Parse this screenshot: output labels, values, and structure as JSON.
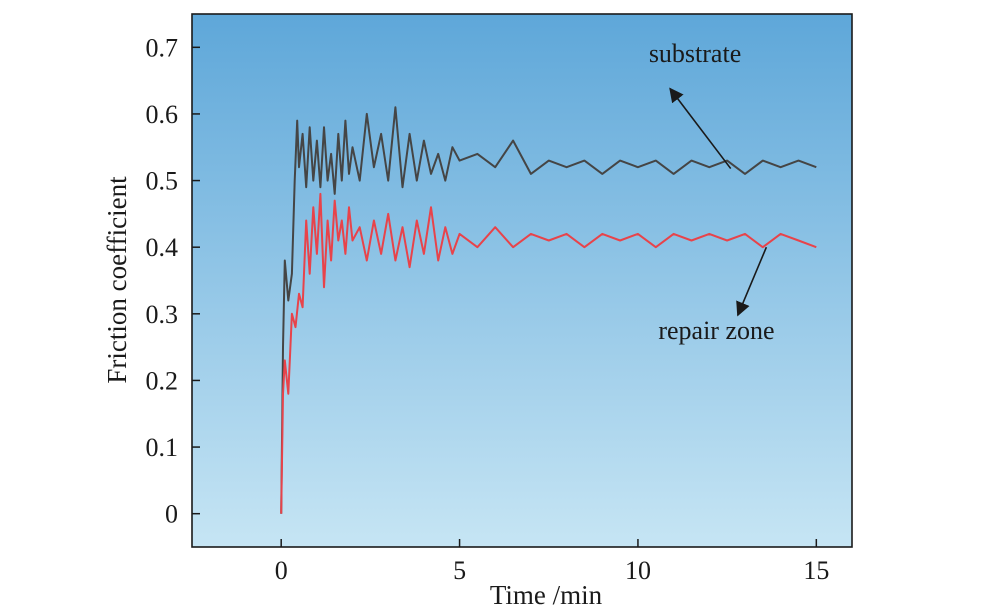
{
  "chart_data": {
    "type": "line",
    "title": "",
    "xlabel": "Time /min",
    "ylabel": "Friction coefficient",
    "xlim": [
      -2.5,
      16
    ],
    "ylim": [
      -0.05,
      0.75
    ],
    "x_ticks": [
      0,
      5,
      10,
      15
    ],
    "y_ticks": [
      0,
      0.1,
      0.2,
      0.3,
      0.4,
      0.5,
      0.6,
      0.7
    ],
    "x_tick_labels": [
      "0",
      "5",
      "10",
      "15"
    ],
    "y_tick_labels": [
      "0",
      "0.1",
      "0.2",
      "0.3",
      "0.4",
      "0.5",
      "0.6",
      "0.7"
    ],
    "grid": false,
    "legend": "none",
    "series": [
      {
        "name": "substrate",
        "color": "#454545",
        "x": [
          0,
          0.05,
          0.1,
          0.2,
          0.3,
          0.38,
          0.45,
          0.5,
          0.6,
          0.7,
          0.8,
          0.9,
          1.0,
          1.1,
          1.2,
          1.3,
          1.4,
          1.5,
          1.6,
          1.7,
          1.8,
          1.9,
          2.0,
          2.2,
          2.4,
          2.6,
          2.8,
          3.0,
          3.2,
          3.4,
          3.6,
          3.8,
          4.0,
          4.2,
          4.4,
          4.6,
          4.8,
          5.0,
          5.5,
          6.0,
          6.5,
          7.0,
          7.5,
          8.0,
          8.5,
          9.0,
          9.5,
          10.0,
          10.5,
          11.0,
          11.5,
          12.0,
          12.5,
          13.0,
          13.5,
          14.0,
          14.5,
          15.0
        ],
        "values": [
          0.0,
          0.25,
          0.38,
          0.32,
          0.36,
          0.5,
          0.59,
          0.52,
          0.57,
          0.49,
          0.58,
          0.5,
          0.56,
          0.49,
          0.58,
          0.5,
          0.54,
          0.48,
          0.57,
          0.5,
          0.59,
          0.51,
          0.55,
          0.5,
          0.6,
          0.52,
          0.57,
          0.5,
          0.61,
          0.49,
          0.57,
          0.5,
          0.56,
          0.51,
          0.54,
          0.5,
          0.55,
          0.53,
          0.54,
          0.52,
          0.56,
          0.51,
          0.53,
          0.52,
          0.53,
          0.51,
          0.53,
          0.52,
          0.53,
          0.51,
          0.53,
          0.52,
          0.53,
          0.51,
          0.53,
          0.52,
          0.53,
          0.52
        ]
      },
      {
        "name": "repair zone",
        "color": "#e8434a",
        "x": [
          0,
          0.05,
          0.1,
          0.2,
          0.3,
          0.4,
          0.5,
          0.6,
          0.7,
          0.8,
          0.9,
          1.0,
          1.1,
          1.2,
          1.3,
          1.4,
          1.5,
          1.6,
          1.7,
          1.8,
          1.9,
          2.0,
          2.2,
          2.4,
          2.6,
          2.8,
          3.0,
          3.2,
          3.4,
          3.6,
          3.8,
          4.0,
          4.2,
          4.4,
          4.6,
          4.8,
          5.0,
          5.5,
          6.0,
          6.5,
          7.0,
          7.5,
          8.0,
          8.5,
          9.0,
          9.5,
          10.0,
          10.5,
          11.0,
          11.5,
          12.0,
          12.5,
          13.0,
          13.5,
          14.0,
          14.5,
          15.0
        ],
        "values": [
          0.0,
          0.18,
          0.23,
          0.18,
          0.3,
          0.28,
          0.33,
          0.31,
          0.44,
          0.36,
          0.46,
          0.39,
          0.48,
          0.34,
          0.44,
          0.38,
          0.47,
          0.41,
          0.44,
          0.39,
          0.46,
          0.41,
          0.43,
          0.38,
          0.44,
          0.39,
          0.45,
          0.38,
          0.43,
          0.37,
          0.44,
          0.39,
          0.46,
          0.38,
          0.43,
          0.39,
          0.42,
          0.4,
          0.43,
          0.4,
          0.42,
          0.41,
          0.42,
          0.4,
          0.42,
          0.41,
          0.42,
          0.4,
          0.42,
          0.41,
          0.42,
          0.41,
          0.42,
          0.4,
          0.42,
          0.41,
          0.4
        ]
      }
    ],
    "annotations": [
      {
        "text": "substrate",
        "target_series": "substrate",
        "label_at": [
          11.6,
          0.678
        ],
        "arrow_from": [
          10.9,
          0.638
        ],
        "arrow_to": [
          12.6,
          0.518
        ]
      },
      {
        "text": "repair zone",
        "target_series": "repair zone",
        "label_at": [
          12.2,
          0.262
        ],
        "arrow_from": [
          12.8,
          0.298
        ],
        "arrow_to": [
          13.6,
          0.4
        ]
      }
    ],
    "background_gradient": [
      "#5ea7d9",
      "#c6e5f4"
    ]
  }
}
